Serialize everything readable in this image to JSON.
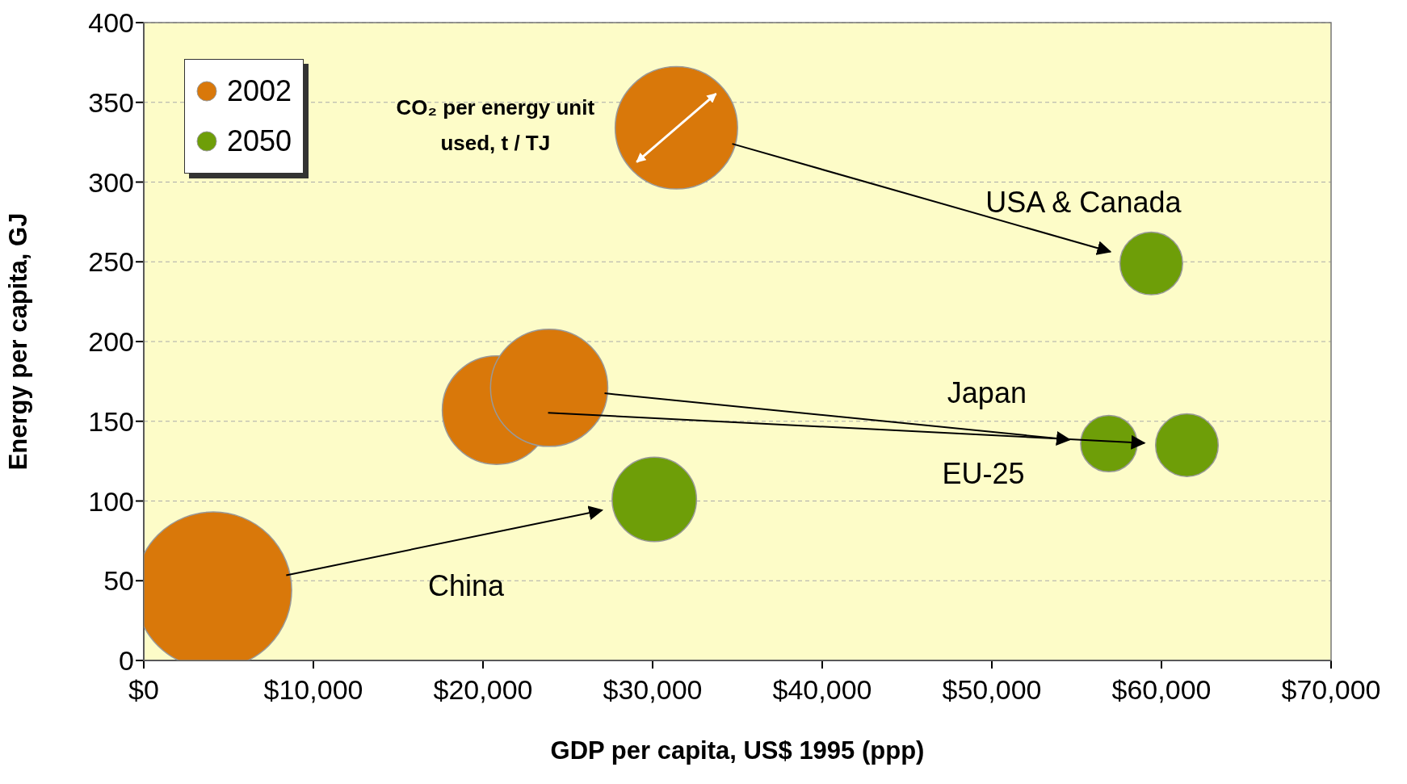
{
  "chart_data": {
    "type": "bubble",
    "xlabel": "GDP per capita, US$ 1995 (ppp)",
    "ylabel": "Energy per capita, GJ",
    "xlim": [
      0,
      70000
    ],
    "xticks": [
      {
        "value": 0,
        "label": "$0"
      },
      {
        "value": 10000,
        "label": "$10,000"
      },
      {
        "value": 20000,
        "label": "$20,000"
      },
      {
        "value": 30000,
        "label": "$30,000"
      },
      {
        "value": 40000,
        "label": "$40,000"
      },
      {
        "value": 50000,
        "label": "$50,000"
      },
      {
        "value": 60000,
        "label": "$60,000"
      },
      {
        "value": 70000,
        "label": "$70,000"
      }
    ],
    "ylim": [
      0,
      400
    ],
    "yticks": [
      0,
      50,
      100,
      150,
      200,
      250,
      300,
      350,
      400
    ],
    "grid": "y",
    "legend": "top left",
    "series": [
      {
        "name": "2002",
        "color": "#d9780a",
        "x": [
          31400,
          20800,
          23900,
          4100
        ],
        "values": [
          334,
          157,
          171,
          44
        ],
        "sizes": [
          0.61,
          0.48,
          0.56,
          1
        ]
      },
      {
        "name": "2050",
        "color": "#6e9e08",
        "x": [
          59400,
          61500,
          56900,
          30100
        ],
        "values": [
          249,
          135,
          136,
          101
        ],
        "sizes": [
          0.16,
          0.16,
          0.13,
          0.29
        ]
      }
    ],
    "annotations": [
      "USA & Canada",
      "EU-25",
      "Japan",
      "China",
      "CO₂ per energy unit used, t / TJ"
    ]
  }
}
